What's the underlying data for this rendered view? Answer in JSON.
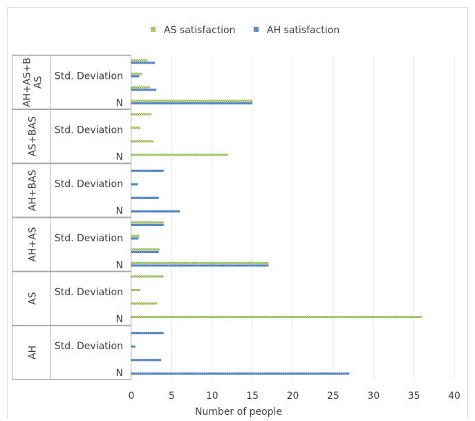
{
  "chart_data": {
    "type": "bar",
    "orientation": "horizontal",
    "xlabel": "Number of people",
    "xlim": [
      0,
      40
    ],
    "xticks": [
      "0",
      "5",
      "10",
      "15",
      "20",
      "25",
      "30",
      "35",
      "40"
    ],
    "legend": {
      "placement": "top"
    },
    "series": [
      {
        "name": "AS satisfaction",
        "color": "#9BBB59",
        "pattern": "dotted"
      },
      {
        "name": "AH satisfaction",
        "color": "#4F81BD",
        "pattern": "solid"
      }
    ],
    "groups": [
      {
        "label": "AH+AS+B AS",
        "rows": [
          {
            "label": "",
            "AS": 2.0,
            "AH": 2.9
          },
          {
            "label": "Std. Deviation",
            "AS": 1.3,
            "AH": 1.0
          },
          {
            "label": "",
            "AS": 2.3,
            "AH": 3.1
          },
          {
            "label": "N",
            "AS": 15,
            "AH": 15
          }
        ]
      },
      {
        "label": "AS+BAS",
        "rows": [
          {
            "label": "",
            "AS": 2.5,
            "AH": null
          },
          {
            "label": "Std. Deviation",
            "AS": 1.1,
            "AH": null
          },
          {
            "label": "",
            "AS": 2.7,
            "AH": null
          },
          {
            "label": "N",
            "AS": 12,
            "AH": null
          }
        ]
      },
      {
        "label": "AH+BAS",
        "rows": [
          {
            "label": "",
            "AS": null,
            "AH": 4.0
          },
          {
            "label": "Std. Deviation",
            "AS": null,
            "AH": 0.8
          },
          {
            "label": "",
            "AS": null,
            "AH": 3.4
          },
          {
            "label": "N",
            "AS": null,
            "AH": 6
          }
        ]
      },
      {
        "label": "AH+AS",
        "rows": [
          {
            "label": "",
            "AS": 4.0,
            "AH": 4.0
          },
          {
            "label": "Std. Deviation",
            "AS": 1.0,
            "AH": 0.9
          },
          {
            "label": "",
            "AS": 3.5,
            "AH": 3.4
          },
          {
            "label": "N",
            "AS": 17,
            "AH": 17
          }
        ]
      },
      {
        "label": "AS",
        "rows": [
          {
            "label": "",
            "AS": 4.0,
            "AH": null
          },
          {
            "label": "Std. Deviation",
            "AS": 1.1,
            "AH": null
          },
          {
            "label": "",
            "AS": 3.2,
            "AH": null
          },
          {
            "label": "N",
            "AS": 36,
            "AH": null
          }
        ]
      },
      {
        "label": "AH",
        "rows": [
          {
            "label": "",
            "AS": null,
            "AH": 4.0
          },
          {
            "label": "Std. Deviation",
            "AS": null,
            "AH": 0.5
          },
          {
            "label": "",
            "AS": null,
            "AH": 3.7
          },
          {
            "label": "N",
            "AS": null,
            "AH": 27
          }
        ]
      }
    ]
  }
}
